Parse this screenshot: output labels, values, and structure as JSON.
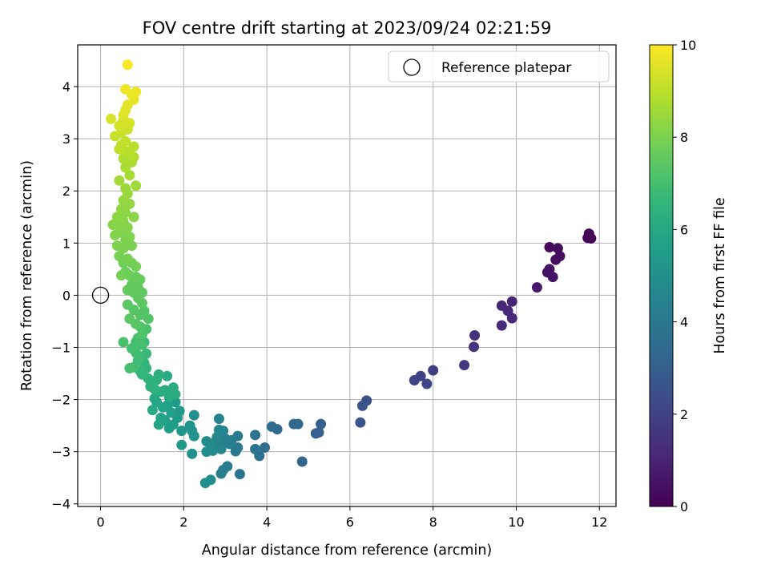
{
  "chart_data": {
    "type": "scatter",
    "title": "FOV centre drift starting at 2023/09/24 02:21:59",
    "xlabel": "Angular distance from reference (arcmin)",
    "ylabel": "Rotation from reference (arcmin)",
    "xlim": [
      -0.55,
      12.4
    ],
    "ylim": [
      -4.05,
      4.8
    ],
    "xticks": [
      0,
      2,
      4,
      6,
      8,
      10,
      12
    ],
    "yticks": [
      -4,
      -3,
      -2,
      -1,
      0,
      1,
      2,
      3,
      4
    ],
    "grid": true,
    "legend": {
      "position": "top-right",
      "entries": [
        "Reference platepar"
      ]
    },
    "reference_point": {
      "x": 0,
      "y": 0
    },
    "colorbar": {
      "label": "Hours from first FF file",
      "min": 0,
      "max": 10,
      "ticks": [
        0,
        2,
        4,
        6,
        8,
        10
      ],
      "colormap": "viridis",
      "colors": [
        "#440154",
        "#482878",
        "#3e4989",
        "#31688e",
        "#26828e",
        "#1f9e89",
        "#35b779",
        "#6ece58",
        "#b5de2b",
        "#fde725"
      ]
    },
    "color_dimension": "hours_from_first_ff_file",
    "points": [
      {
        "x": 11.75,
        "y": 1.18,
        "c": 0.05
      },
      {
        "x": 11.72,
        "y": 1.1,
        "c": 0.1
      },
      {
        "x": 11.8,
        "y": 1.09,
        "c": 0.15
      },
      {
        "x": 10.8,
        "y": 0.92,
        "c": 0.25
      },
      {
        "x": 11.0,
        "y": 0.9,
        "c": 0.3
      },
      {
        "x": 11.05,
        "y": 0.75,
        "c": 0.35
      },
      {
        "x": 10.95,
        "y": 0.68,
        "c": 0.4
      },
      {
        "x": 10.8,
        "y": 0.5,
        "c": 0.45
      },
      {
        "x": 10.75,
        "y": 0.44,
        "c": 0.5
      },
      {
        "x": 10.88,
        "y": 0.35,
        "c": 0.55
      },
      {
        "x": 10.5,
        "y": 0.15,
        "c": 0.7
      },
      {
        "x": 9.9,
        "y": -0.12,
        "c": 1.0
      },
      {
        "x": 9.65,
        "y": -0.2,
        "c": 1.05
      },
      {
        "x": 9.8,
        "y": -0.3,
        "c": 1.1
      },
      {
        "x": 9.9,
        "y": -0.44,
        "c": 1.15
      },
      {
        "x": 9.65,
        "y": -0.58,
        "c": 1.2
      },
      {
        "x": 9.0,
        "y": -0.77,
        "c": 1.45
      },
      {
        "x": 8.98,
        "y": -0.99,
        "c": 1.5
      },
      {
        "x": 8.75,
        "y": -1.34,
        "c": 1.65
      },
      {
        "x": 8.0,
        "y": -1.44,
        "c": 1.9
      },
      {
        "x": 7.7,
        "y": -1.55,
        "c": 2.0
      },
      {
        "x": 7.55,
        "y": -1.63,
        "c": 2.05
      },
      {
        "x": 7.85,
        "y": -1.7,
        "c": 2.1
      },
      {
        "x": 6.4,
        "y": -2.02,
        "c": 2.5
      },
      {
        "x": 6.3,
        "y": -2.12,
        "c": 2.55
      },
      {
        "x": 6.25,
        "y": -2.44,
        "c": 2.65
      },
      {
        "x": 5.3,
        "y": -2.47,
        "c": 3.0
      },
      {
        "x": 5.25,
        "y": -2.63,
        "c": 3.05
      },
      {
        "x": 5.18,
        "y": -2.65,
        "c": 3.1
      },
      {
        "x": 4.85,
        "y": -3.19,
        "c": 3.2
      },
      {
        "x": 4.75,
        "y": -2.47,
        "c": 3.3
      },
      {
        "x": 4.65,
        "y": -2.47,
        "c": 3.35
      },
      {
        "x": 4.25,
        "y": -2.57,
        "c": 3.5
      },
      {
        "x": 4.12,
        "y": -2.52,
        "c": 3.55
      },
      {
        "x": 3.95,
        "y": -2.92,
        "c": 3.6
      },
      {
        "x": 3.82,
        "y": -3.08,
        "c": 3.7
      },
      {
        "x": 3.72,
        "y": -2.68,
        "c": 3.75
      },
      {
        "x": 3.72,
        "y": -2.95,
        "c": 3.8
      },
      {
        "x": 3.35,
        "y": -3.43,
        "c": 3.9
      },
      {
        "x": 3.25,
        "y": -2.99,
        "c": 4.0
      },
      {
        "x": 3.3,
        "y": -2.92,
        "c": 4.05
      },
      {
        "x": 3.3,
        "y": -2.7,
        "c": 4.1
      },
      {
        "x": 3.15,
        "y": -2.78,
        "c": 4.15
      },
      {
        "x": 3.05,
        "y": -3.28,
        "c": 4.2
      },
      {
        "x": 2.95,
        "y": -3.35,
        "c": 4.25
      },
      {
        "x": 2.9,
        "y": -3.42,
        "c": 4.3
      },
      {
        "x": 3.0,
        "y": -2.75,
        "c": 4.35
      },
      {
        "x": 2.9,
        "y": -2.87,
        "c": 4.4
      },
      {
        "x": 2.95,
        "y": -2.6,
        "c": 4.45
      },
      {
        "x": 2.85,
        "y": -2.37,
        "c": 4.5
      },
      {
        "x": 2.85,
        "y": -2.58,
        "c": 4.55
      },
      {
        "x": 2.8,
        "y": -2.72,
        "c": 4.6
      },
      {
        "x": 2.75,
        "y": -2.82,
        "c": 4.65
      },
      {
        "x": 2.7,
        "y": -2.98,
        "c": 4.7
      },
      {
        "x": 2.65,
        "y": -2.87,
        "c": 4.75
      },
      {
        "x": 2.55,
        "y": -2.8,
        "c": 4.8
      },
      {
        "x": 2.55,
        "y": -3.0,
        "c": 4.85
      },
      {
        "x": 2.65,
        "y": -3.54,
        "c": 4.9
      },
      {
        "x": 2.52,
        "y": -3.6,
        "c": 4.95
      },
      {
        "x": 2.9,
        "y": -2.95,
        "c": 4.6
      },
      {
        "x": 3.1,
        "y": -2.85,
        "c": 4.3
      },
      {
        "x": 2.25,
        "y": -2.3,
        "c": 5.0
      },
      {
        "x": 2.2,
        "y": -3.04,
        "c": 5.05
      },
      {
        "x": 2.25,
        "y": -2.7,
        "c": 5.1
      },
      {
        "x": 2.2,
        "y": -2.6,
        "c": 5.15
      },
      {
        "x": 2.15,
        "y": -2.5,
        "c": 5.2
      },
      {
        "x": 1.95,
        "y": -2.6,
        "c": 5.25
      },
      {
        "x": 1.95,
        "y": -2.87,
        "c": 5.3
      },
      {
        "x": 1.9,
        "y": -2.22,
        "c": 5.35
      },
      {
        "x": 1.85,
        "y": -2.35,
        "c": 5.4
      },
      {
        "x": 1.8,
        "y": -2.05,
        "c": 5.45
      },
      {
        "x": 1.75,
        "y": -2.48,
        "c": 5.5
      },
      {
        "x": 1.7,
        "y": -2.25,
        "c": 5.55
      },
      {
        "x": 1.65,
        "y": -2.55,
        "c": 5.6
      },
      {
        "x": 1.62,
        "y": -2.1,
        "c": 5.65
      },
      {
        "x": 1.55,
        "y": -2.4,
        "c": 5.7
      },
      {
        "x": 1.5,
        "y": -2.15,
        "c": 5.75
      },
      {
        "x": 1.45,
        "y": -2.35,
        "c": 5.8
      },
      {
        "x": 1.4,
        "y": -2.48,
        "c": 5.85
      },
      {
        "x": 1.35,
        "y": -2.05,
        "c": 5.9
      },
      {
        "x": 1.3,
        "y": -1.98,
        "c": 5.95
      },
      {
        "x": 1.25,
        "y": -2.2,
        "c": 6.0
      },
      {
        "x": 1.55,
        "y": -1.82,
        "c": 6.05
      },
      {
        "x": 1.6,
        "y": -1.55,
        "c": 6.1
      },
      {
        "x": 1.75,
        "y": -1.77,
        "c": 6.15
      },
      {
        "x": 1.8,
        "y": -1.9,
        "c": 6.2
      },
      {
        "x": 1.65,
        "y": -1.95,
        "c": 6.1
      },
      {
        "x": 1.45,
        "y": -1.85,
        "c": 6.2
      },
      {
        "x": 1.4,
        "y": -1.52,
        "c": 6.25
      },
      {
        "x": 1.35,
        "y": -1.62,
        "c": 6.3
      },
      {
        "x": 1.3,
        "y": -1.8,
        "c": 6.35
      },
      {
        "x": 1.2,
        "y": -1.75,
        "c": 6.4
      },
      {
        "x": 1.15,
        "y": -1.6,
        "c": 6.45
      },
      {
        "x": 1.1,
        "y": -1.4,
        "c": 6.5
      },
      {
        "x": 1.05,
        "y": -1.3,
        "c": 6.55
      },
      {
        "x": 1.0,
        "y": -1.52,
        "c": 6.6
      },
      {
        "x": 0.95,
        "y": -1.45,
        "c": 6.65
      },
      {
        "x": 1.1,
        "y": -1.12,
        "c": 6.7
      },
      {
        "x": 1.05,
        "y": -0.9,
        "c": 6.75
      },
      {
        "x": 0.95,
        "y": -1.18,
        "c": 6.8
      },
      {
        "x": 0.9,
        "y": -1.25,
        "c": 6.85
      },
      {
        "x": 0.85,
        "y": -1.1,
        "c": 6.9
      },
      {
        "x": 0.8,
        "y": -1.38,
        "c": 6.95
      },
      {
        "x": 0.75,
        "y": -1.02,
        "c": 7.0
      },
      {
        "x": 0.7,
        "y": -1.4,
        "c": 7.05
      },
      {
        "x": 0.55,
        "y": -0.9,
        "c": 7.1
      },
      {
        "x": 1.1,
        "y": -0.65,
        "c": 7.1
      },
      {
        "x": 1.0,
        "y": -0.75,
        "c": 7.15
      },
      {
        "x": 0.95,
        "y": -0.6,
        "c": 7.2
      },
      {
        "x": 0.9,
        "y": -0.82,
        "c": 7.2
      },
      {
        "x": 1.0,
        "y": -0.95,
        "c": 7.0
      },
      {
        "x": 0.85,
        "y": -0.9,
        "c": 7.0
      },
      {
        "x": 1.15,
        "y": -0.45,
        "c": 7.25
      },
      {
        "x": 1.05,
        "y": -0.3,
        "c": 7.3
      },
      {
        "x": 0.95,
        "y": -0.38,
        "c": 7.3
      },
      {
        "x": 0.85,
        "y": -0.55,
        "c": 7.35
      },
      {
        "x": 0.8,
        "y": -0.28,
        "c": 7.35
      },
      {
        "x": 0.7,
        "y": -0.45,
        "c": 7.4
      },
      {
        "x": 0.65,
        "y": -0.18,
        "c": 7.4
      },
      {
        "x": 1.0,
        "y": -0.15,
        "c": 7.45
      },
      {
        "x": 0.9,
        "y": -0.05,
        "c": 7.45
      },
      {
        "x": 1.0,
        "y": 0.05,
        "c": 7.5
      },
      {
        "x": 0.8,
        "y": 0.05,
        "c": 7.5
      },
      {
        "x": 0.9,
        "y": 0.15,
        "c": 7.55
      },
      {
        "x": 0.75,
        "y": 0.2,
        "c": 7.55
      },
      {
        "x": 0.95,
        "y": 0.3,
        "c": 7.6
      },
      {
        "x": 0.65,
        "y": 0.1,
        "c": 7.6
      },
      {
        "x": 0.85,
        "y": 0.35,
        "c": 7.65
      },
      {
        "x": 0.7,
        "y": 0.38,
        "c": 7.7
      },
      {
        "x": 0.6,
        "y": 0.45,
        "c": 7.75
      },
      {
        "x": 0.55,
        "y": 0.62,
        "c": 7.8
      },
      {
        "x": 0.75,
        "y": 0.62,
        "c": 7.8
      },
      {
        "x": 0.85,
        "y": 0.55,
        "c": 7.85
      },
      {
        "x": 0.5,
        "y": 0.38,
        "c": 7.85
      },
      {
        "x": 0.65,
        "y": 0.7,
        "c": 7.9
      },
      {
        "x": 0.45,
        "y": 0.75,
        "c": 7.9
      },
      {
        "x": 0.55,
        "y": 0.9,
        "c": 7.95
      },
      {
        "x": 0.75,
        "y": 0.95,
        "c": 7.95
      },
      {
        "x": 0.4,
        "y": 0.95,
        "c": 8.0
      },
      {
        "x": 0.6,
        "y": 1.05,
        "c": 8.0
      },
      {
        "x": 0.7,
        "y": 1.12,
        "c": 8.05
      },
      {
        "x": 0.5,
        "y": 1.2,
        "c": 8.05
      },
      {
        "x": 0.35,
        "y": 1.15,
        "c": 8.1
      },
      {
        "x": 0.65,
        "y": 1.3,
        "c": 8.1
      },
      {
        "x": 0.45,
        "y": 1.32,
        "c": 8.15
      },
      {
        "x": 0.3,
        "y": 1.35,
        "c": 8.15
      },
      {
        "x": 0.55,
        "y": 1.42,
        "c": 8.2
      },
      {
        "x": 0.8,
        "y": 1.5,
        "c": 8.2
      },
      {
        "x": 0.4,
        "y": 1.5,
        "c": 8.25
      },
      {
        "x": 0.6,
        "y": 1.58,
        "c": 8.25
      },
      {
        "x": 0.5,
        "y": 1.65,
        "c": 8.3
      },
      {
        "x": 0.7,
        "y": 1.75,
        "c": 8.35
      },
      {
        "x": 0.55,
        "y": 1.82,
        "c": 8.4
      },
      {
        "x": 0.65,
        "y": 1.95,
        "c": 8.45
      },
      {
        "x": 0.6,
        "y": 2.05,
        "c": 8.5
      },
      {
        "x": 0.85,
        "y": 2.1,
        "c": 8.55
      },
      {
        "x": 0.45,
        "y": 2.2,
        "c": 8.6
      },
      {
        "x": 0.7,
        "y": 2.3,
        "c": 8.65
      },
      {
        "x": 0.6,
        "y": 2.45,
        "c": 8.7
      },
      {
        "x": 0.75,
        "y": 2.55,
        "c": 8.75
      },
      {
        "x": 0.55,
        "y": 2.62,
        "c": 8.8
      },
      {
        "x": 0.8,
        "y": 2.65,
        "c": 8.85
      },
      {
        "x": 0.65,
        "y": 2.75,
        "c": 8.9
      },
      {
        "x": 0.8,
        "y": 2.85,
        "c": 8.95
      },
      {
        "x": 0.5,
        "y": 2.88,
        "c": 9.0
      },
      {
        "x": 0.45,
        "y": 2.8,
        "c": 9.05
      },
      {
        "x": 0.6,
        "y": 2.95,
        "c": 9.1
      },
      {
        "x": 0.35,
        "y": 3.05,
        "c": 9.15
      },
      {
        "x": 0.5,
        "y": 3.12,
        "c": 9.2
      },
      {
        "x": 0.65,
        "y": 3.18,
        "c": 9.25
      },
      {
        "x": 0.45,
        "y": 3.25,
        "c": 9.3
      },
      {
        "x": 0.55,
        "y": 3.35,
        "c": 9.35
      },
      {
        "x": 0.7,
        "y": 3.3,
        "c": 9.4
      },
      {
        "x": 0.25,
        "y": 3.38,
        "c": 9.45
      },
      {
        "x": 0.55,
        "y": 3.45,
        "c": 9.5
      },
      {
        "x": 0.6,
        "y": 3.55,
        "c": 9.55
      },
      {
        "x": 0.65,
        "y": 3.65,
        "c": 9.6
      },
      {
        "x": 0.8,
        "y": 3.75,
        "c": 9.65
      },
      {
        "x": 0.75,
        "y": 3.85,
        "c": 9.7
      },
      {
        "x": 0.85,
        "y": 3.9,
        "c": 9.75
      },
      {
        "x": 0.6,
        "y": 3.95,
        "c": 9.8
      },
      {
        "x": 0.65,
        "y": 4.42,
        "c": 9.95
      }
    ]
  }
}
